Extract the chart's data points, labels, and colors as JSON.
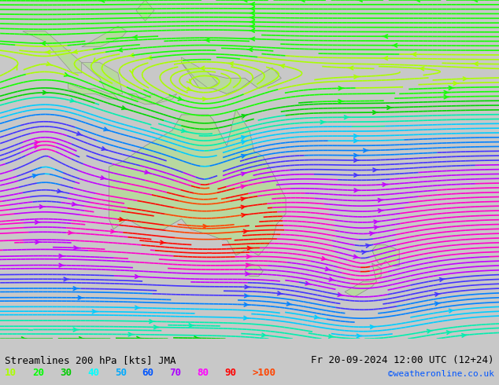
{
  "title_left": "Streamlines 200 hPa [kts] JMA",
  "title_right": "Fr 20-09-2024 12:00 UTC (12+24)",
  "credit": "©weatheronline.co.uk",
  "legend_values": [
    "10",
    "20",
    "30",
    "40",
    "50",
    "60",
    "70",
    "80",
    "90",
    ">100"
  ],
  "legend_colors": [
    "#aaff00",
    "#00ff00",
    "#00cc00",
    "#00ffff",
    "#00aaff",
    "#0055ff",
    "#aa00ff",
    "#ff00ff",
    "#ff0000",
    "#ff4400"
  ],
  "background_map": "#d0d0d0",
  "land_color": "#c8e8c8",
  "australia_color": "#90ee90",
  "ocean_color": "#e8e8e8",
  "fig_width": 6.34,
  "fig_height": 4.9,
  "dpi": 100,
  "bottom_bar_color": "#ffffff",
  "bottom_text_color": "#000000",
  "credit_color": "#0055ff",
  "lon_min": 90,
  "lon_max": 200,
  "lat_min": -55,
  "lat_max": 10
}
